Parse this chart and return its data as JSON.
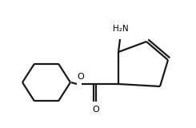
{
  "background_color": "#ffffff",
  "line_color": "#1a1a1a",
  "line_width": 1.6,
  "text_color": "#000000",
  "figsize": [
    2.45,
    1.6
  ],
  "dpi": 100,
  "xlim": [
    0,
    245
  ],
  "ylim": [
    0,
    160
  ]
}
